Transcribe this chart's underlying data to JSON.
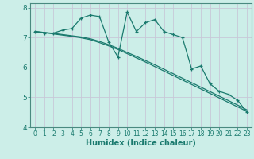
{
  "title": "",
  "xlabel": "Humidex (Indice chaleur)",
  "bg_color": "#cceee8",
  "line_color": "#1a7a6e",
  "grid_color": "#c8c8d8",
  "x_data": [
    0,
    1,
    2,
    3,
    4,
    5,
    6,
    7,
    8,
    9,
    10,
    11,
    12,
    13,
    14,
    15,
    16,
    17,
    18,
    19,
    20,
    21,
    22,
    23
  ],
  "y_jagged": [
    7.2,
    7.15,
    7.15,
    7.25,
    7.3,
    7.65,
    7.75,
    7.7,
    6.85,
    6.35,
    7.85,
    7.2,
    7.5,
    7.6,
    7.2,
    7.1,
    7.0,
    5.95,
    6.05,
    5.45,
    5.2,
    5.1,
    4.9,
    4.5
  ],
  "y_smooth1": [
    7.2,
    7.17,
    7.12,
    7.08,
    7.04,
    6.99,
    6.93,
    6.83,
    6.72,
    6.6,
    6.46,
    6.32,
    6.18,
    6.03,
    5.88,
    5.73,
    5.58,
    5.43,
    5.28,
    5.13,
    4.98,
    4.83,
    4.68,
    4.53
  ],
  "y_smooth2": [
    7.2,
    7.17,
    7.14,
    7.1,
    7.06,
    7.02,
    6.96,
    6.87,
    6.76,
    6.64,
    6.5,
    6.37,
    6.23,
    6.09,
    5.94,
    5.79,
    5.64,
    5.49,
    5.34,
    5.19,
    5.04,
    4.89,
    4.74,
    4.58
  ],
  "ylim": [
    4.0,
    8.15
  ],
  "xlim": [
    -0.5,
    23.5
  ],
  "yticks": [
    4,
    5,
    6,
    7,
    8
  ],
  "xticks": [
    0,
    1,
    2,
    3,
    4,
    5,
    6,
    7,
    8,
    9,
    10,
    11,
    12,
    13,
    14,
    15,
    16,
    17,
    18,
    19,
    20,
    21,
    22,
    23
  ]
}
